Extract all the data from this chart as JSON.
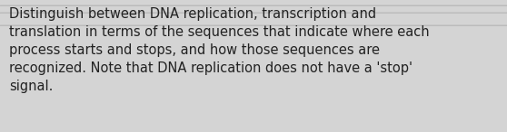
{
  "text": "Distinguish between DNA replication, transcription and\ntranslation in terms of the sequences that indicate where each\nprocess starts and stops, and how those sequences are\nrecognized. Note that DNA replication does not have a 'stop'\nsignal.",
  "background_color": "#d4d4d4",
  "text_color": "#222222",
  "font_size": 10.5,
  "line_color": "#aaaaaa",
  "line_color2": "#888888",
  "figwidth": 5.58,
  "figheight": 1.46,
  "dpi": 100
}
